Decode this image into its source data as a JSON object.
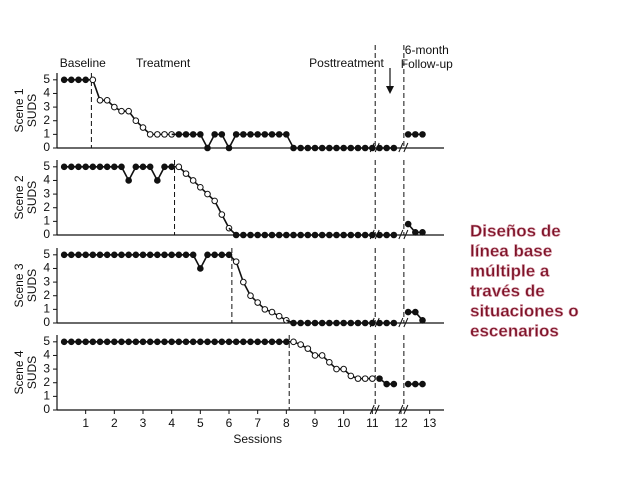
{
  "annotation": [
    "Diseños de",
    "línea base",
    "múltiple a",
    "través de",
    "situaciones o",
    "escenarios"
  ],
  "chart_data": [
    {
      "type": "line",
      "ylabel": [
        "Scene 1",
        "SUDS"
      ],
      "xlim": [
        0,
        13.5
      ],
      "ylim": [
        0,
        5.5
      ],
      "yticks": [
        0,
        1,
        2,
        3,
        4,
        5
      ],
      "phase_labels": [
        "Baseline",
        "Treatment",
        "Posttreatment"
      ],
      "followup_label": [
        "6-month",
        "Follow-up"
      ],
      "phase_lines": [
        1.2,
        11.1,
        12.1
      ],
      "segments": [
        {
          "marker": "filled",
          "x": [
            0.25,
            0.5,
            0.75,
            1
          ],
          "values": [
            5,
            5,
            5,
            5
          ]
        },
        {
          "marker": "open",
          "x": [
            1.25,
            1.5,
            1.75,
            2,
            2.25,
            2.5,
            2.75,
            3,
            3.25,
            3.5,
            3.75,
            4
          ],
          "values": [
            5,
            3.5,
            3.5,
            3,
            2.7,
            2.7,
            2,
            1.5,
            1,
            1,
            1,
            1
          ]
        },
        {
          "marker": "filled",
          "x": [
            4.25,
            4.5,
            4.75,
            5,
            5.25,
            5.5,
            5.75,
            6,
            6.25,
            6.5,
            6.75,
            7,
            7.25,
            7.5,
            7.75,
            8,
            8.25,
            8.5,
            8.75,
            9,
            9.25,
            9.5,
            9.75,
            10,
            10.25,
            10.5,
            10.75,
            11
          ],
          "values": [
            1,
            1,
            1,
            1,
            0,
            1,
            1,
            0,
            1,
            1,
            1,
            1,
            1,
            1,
            1,
            1,
            0,
            0,
            0,
            0,
            0,
            0,
            0,
            0,
            0,
            0,
            0,
            0
          ]
        },
        {
          "marker": "filled",
          "break": true,
          "x": [
            11.25,
            11.5,
            11.75
          ],
          "values": [
            0,
            0,
            0
          ]
        },
        {
          "marker": "filled",
          "break": true,
          "x": [
            12.25,
            12.5,
            12.75
          ],
          "values": [
            1,
            1,
            1
          ]
        }
      ]
    },
    {
      "type": "line",
      "ylabel": [
        "Scene 2",
        "SUDS"
      ],
      "xlim": [
        0,
        13.5
      ],
      "ylim": [
        0,
        5.5
      ],
      "yticks": [
        0,
        1,
        2,
        3,
        4,
        5
      ],
      "phase_lines": [
        4.1,
        11.1,
        12.1
      ],
      "segments": [
        {
          "marker": "filled",
          "x": [
            0.25,
            0.5,
            0.75,
            1,
            1.25,
            1.5,
            1.75,
            2,
            2.25,
            2.5,
            2.75,
            3,
            3.25,
            3.5,
            3.75,
            4
          ],
          "values": [
            5,
            5,
            5,
            5,
            5,
            5,
            5,
            5,
            5,
            4,
            5,
            5,
            5,
            4,
            5,
            5
          ]
        },
        {
          "marker": "open",
          "x": [
            4.25,
            4.5,
            4.75,
            5,
            5.25,
            5.5,
            5.75,
            6
          ],
          "values": [
            5,
            4.5,
            4,
            3.5,
            3,
            2.5,
            1.5,
            0.5
          ]
        },
        {
          "marker": "filled",
          "x": [
            6.25,
            6.5,
            6.75,
            7,
            7.25,
            7.5,
            7.75,
            8,
            8.25,
            8.5,
            8.75,
            9,
            9.25,
            9.5,
            9.75,
            10,
            10.25,
            10.5,
            10.75,
            11
          ],
          "values": [
            0,
            0,
            0,
            0,
            0,
            0,
            0,
            0,
            0,
            0,
            0,
            0,
            0,
            0,
            0,
            0,
            0,
            0,
            0,
            0
          ]
        },
        {
          "marker": "filled",
          "break": true,
          "x": [
            11.25,
            11.5,
            11.75
          ],
          "values": [
            0,
            0,
            0
          ]
        },
        {
          "marker": "filled",
          "break": true,
          "x": [
            12.25,
            12.5,
            12.75
          ],
          "values": [
            0.8,
            0.2,
            0.2
          ]
        }
      ]
    },
    {
      "type": "line",
      "ylabel": [
        "Scene 3",
        "SUDS"
      ],
      "xlim": [
        0,
        13.5
      ],
      "ylim": [
        0,
        5.5
      ],
      "yticks": [
        0,
        1,
        2,
        3,
        4,
        5
      ],
      "phase_lines": [
        6.1,
        11.1,
        12.1
      ],
      "segments": [
        {
          "marker": "filled",
          "x": [
            0.25,
            0.5,
            0.75,
            1,
            1.25,
            1.5,
            1.75,
            2,
            2.25,
            2.5,
            2.75,
            3,
            3.25,
            3.5,
            3.75,
            4,
            4.25,
            4.5,
            4.75,
            5,
            5.25,
            5.5,
            5.75,
            6
          ],
          "values": [
            5,
            5,
            5,
            5,
            5,
            5,
            5,
            5,
            5,
            5,
            5,
            5,
            5,
            5,
            5,
            5,
            5,
            5,
            5,
            4,
            5,
            5,
            5,
            5
          ]
        },
        {
          "marker": "open",
          "x": [
            6.25,
            6.5,
            6.75,
            7,
            7.25,
            7.5,
            7.75,
            8
          ],
          "values": [
            4.5,
            3,
            2,
            1.5,
            1,
            0.8,
            0.5,
            0.2
          ]
        },
        {
          "marker": "filled",
          "x": [
            8.25,
            8.5,
            8.75,
            9,
            9.25,
            9.5,
            9.75,
            10,
            10.25,
            10.5,
            10.75,
            11
          ],
          "values": [
            0,
            0,
            0,
            0,
            0,
            0,
            0,
            0,
            0,
            0,
            0,
            0
          ]
        },
        {
          "marker": "filled",
          "break": true,
          "x": [
            11.25,
            11.5,
            11.75
          ],
          "values": [
            0,
            0,
            0
          ]
        },
        {
          "marker": "filled",
          "break": true,
          "x": [
            12.25,
            12.5,
            12.75
          ],
          "values": [
            0.8,
            0.8,
            0.2
          ]
        }
      ]
    },
    {
      "type": "line",
      "ylabel": [
        "Scene 4",
        "SUDS"
      ],
      "xlabel": "Sessions",
      "xlim": [
        0,
        13.5
      ],
      "ylim": [
        0,
        5.5
      ],
      "yticks": [
        0,
        1,
        2,
        3,
        4,
        5
      ],
      "xticks": [
        1,
        2,
        3,
        4,
        5,
        6,
        7,
        8,
        9,
        10,
        11,
        12,
        13
      ],
      "phase_lines": [
        8.1,
        11.1,
        12.1
      ],
      "segments": [
        {
          "marker": "filled",
          "x": [
            0.25,
            0.5,
            0.75,
            1,
            1.25,
            1.5,
            1.75,
            2,
            2.25,
            2.5,
            2.75,
            3,
            3.25,
            3.5,
            3.75,
            4,
            4.25,
            4.5,
            4.75,
            5,
            5.25,
            5.5,
            5.75,
            6,
            6.25,
            6.5,
            6.75,
            7,
            7.25,
            7.5,
            7.75,
            8
          ],
          "values": [
            5,
            5,
            5,
            5,
            5,
            5,
            5,
            5,
            5,
            5,
            5,
            5,
            5,
            5,
            5,
            5,
            5,
            5,
            5,
            5,
            5,
            5,
            5,
            5,
            5,
            5,
            5,
            5,
            5,
            5,
            5,
            5
          ]
        },
        {
          "marker": "open",
          "x": [
            8.25,
            8.5,
            8.75,
            9,
            9.25,
            9.5,
            9.75,
            10,
            10.25,
            10.5,
            10.75,
            11
          ],
          "values": [
            5,
            4.8,
            4.5,
            4,
            4,
            3.5,
            3,
            3,
            2.5,
            2.3,
            2.3,
            2.3
          ]
        },
        {
          "marker": "filled",
          "break": true,
          "x": [
            11.25,
            11.5,
            11.75
          ],
          "values": [
            2.3,
            1.9,
            1.9
          ]
        },
        {
          "marker": "filled",
          "break": true,
          "x": [
            12.25,
            12.5,
            12.75
          ],
          "values": [
            1.9,
            1.9,
            1.9
          ]
        }
      ]
    }
  ]
}
